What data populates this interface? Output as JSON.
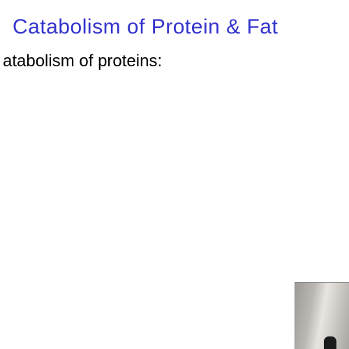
{
  "slide": {
    "title": "Catabolism of Protein & Fat",
    "subtitle": "atabolism of proteins:",
    "title_color": "#3333cc",
    "title_fontsize": 30,
    "subtitle_color": "#000000",
    "subtitle_fontsize": 24,
    "background_color": "#ffffff"
  },
  "thumbnail": {
    "gradient_colors": [
      "#9e9a96",
      "#bab6b2",
      "#e8e4df",
      "#cfccc7",
      "#a8a4a0"
    ],
    "width": 78,
    "height": 96,
    "position": "bottom-right"
  }
}
